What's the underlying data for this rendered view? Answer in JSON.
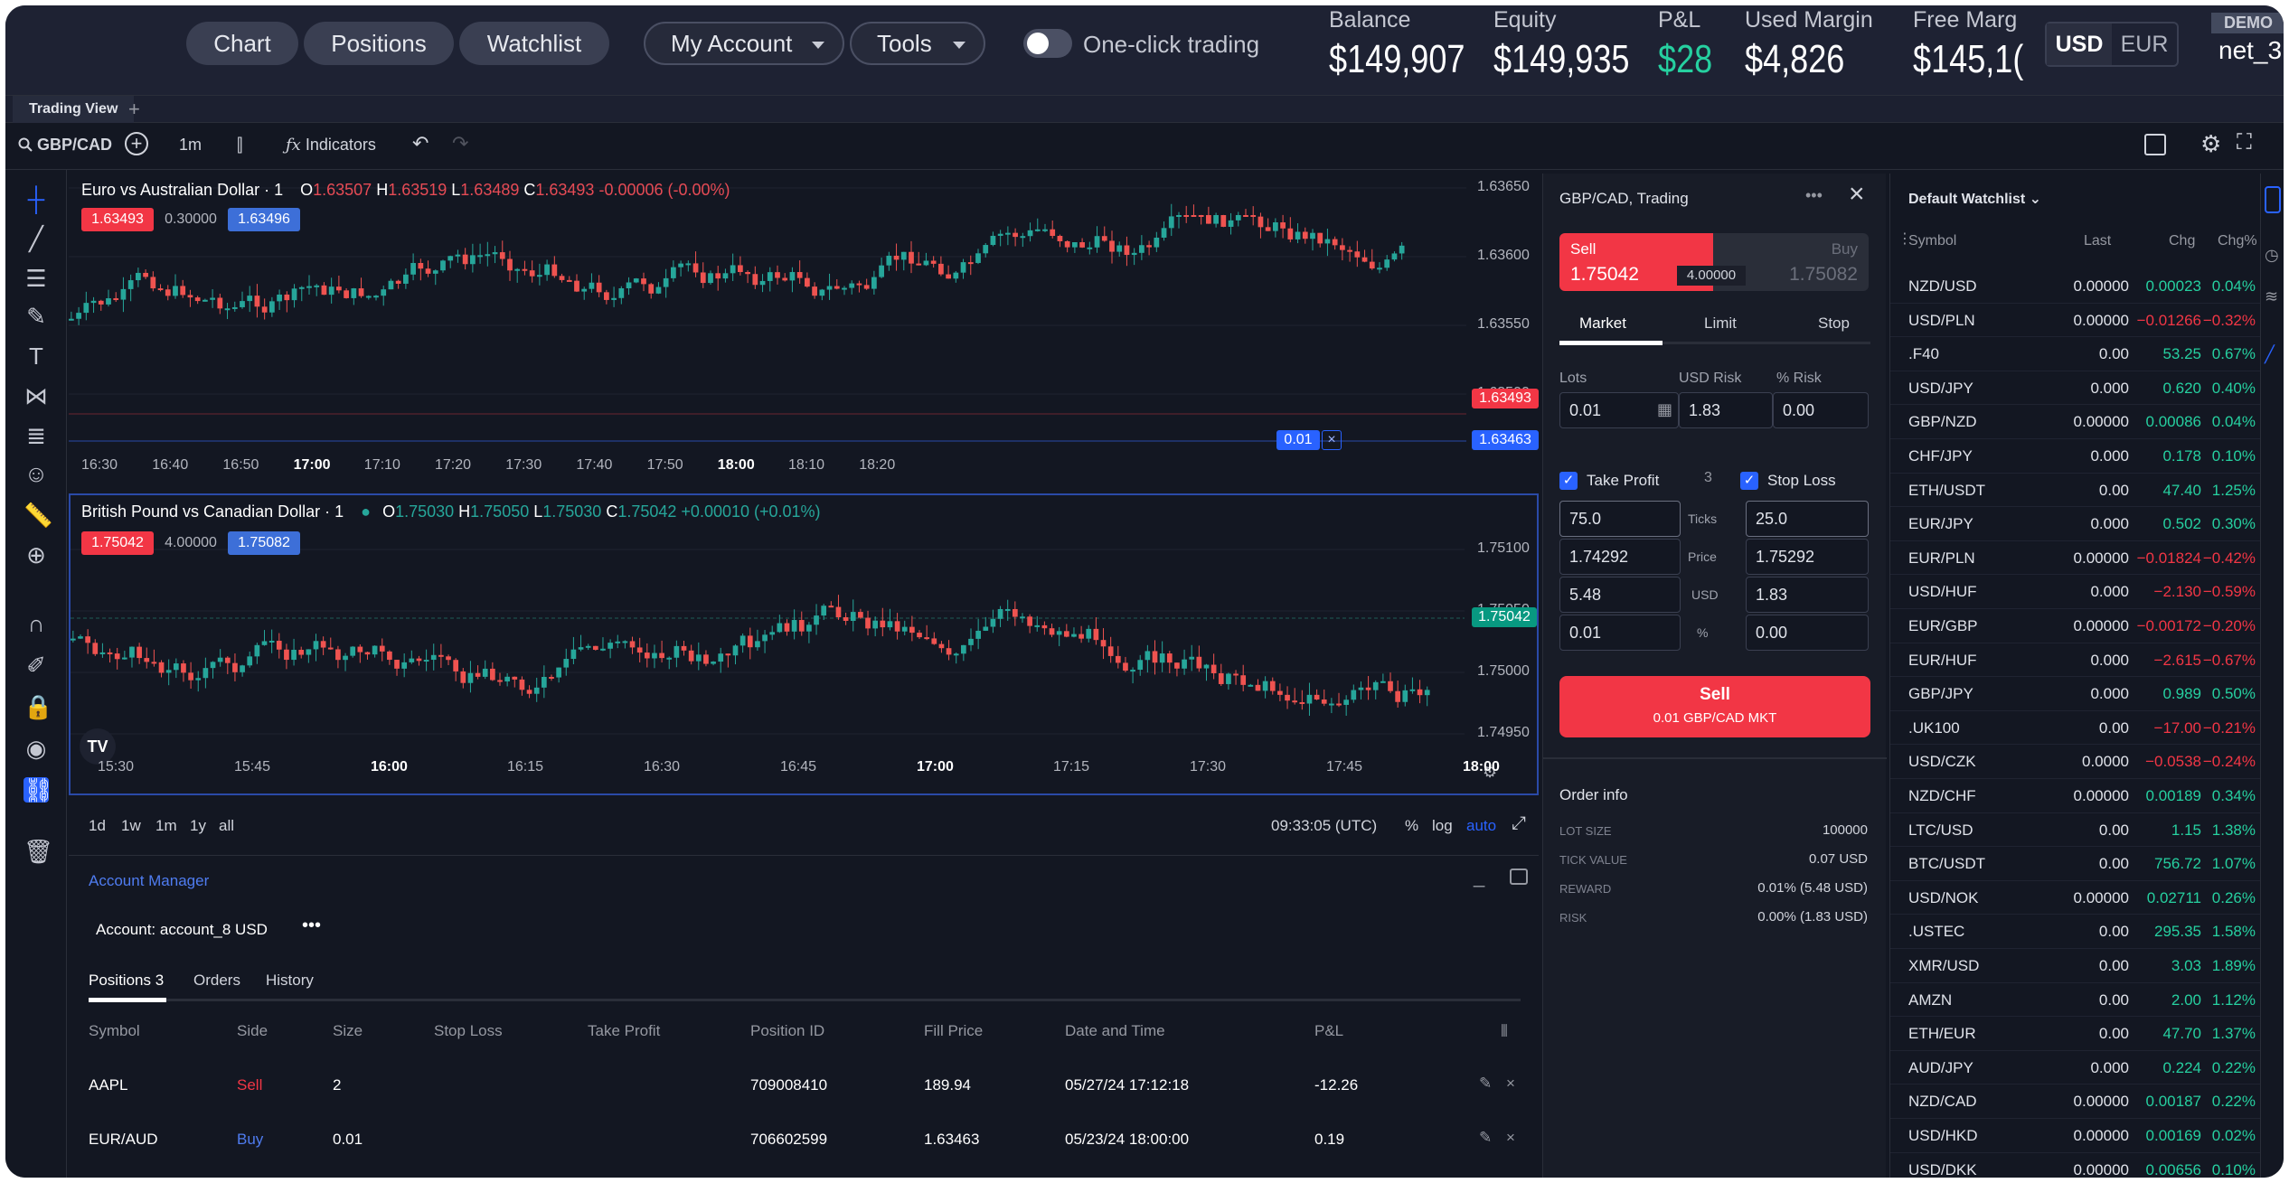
{
  "topbar": {
    "nav": [
      "Chart",
      "Positions",
      "Watchlist"
    ],
    "menus": [
      "My Account",
      "Tools"
    ],
    "one_click": "One-click trading",
    "metrics": [
      {
        "label": "Balance",
        "value": "$149,907"
      },
      {
        "label": "Equity",
        "value": "$149,935"
      },
      {
        "label": "P&L",
        "value": "$28"
      },
      {
        "label": "Used Margin",
        "value": "$4,826"
      },
      {
        "label": "Free Marg",
        "value": "$145,1("
      }
    ],
    "currencies": [
      "USD",
      "EUR"
    ],
    "demo": "DEMO",
    "account": "net_3"
  },
  "tabbar": {
    "tab": "Trading View",
    "plus": "+"
  },
  "toolbar": {
    "symbol": "GBP/CAD",
    "interval": "1m",
    "indicators": "Indicators"
  },
  "chart1": {
    "title": "Euro vs Australian Dollar · 1",
    "ohlc": {
      "o": "1.63507",
      "h": "1.63519",
      "l": "1.63489",
      "c": "1.63493",
      "chg": "-0.00006 (-0.00%)"
    },
    "sell": "1.63493",
    "spread": "0.30000",
    "buy": "1.63496",
    "prices": [
      "1.63650",
      "1.63600",
      "1.63550",
      "1.63500"
    ],
    "tag_red": "1.63493",
    "tag_blue": "1.63463",
    "qty": "0.01",
    "times": [
      {
        "t": "16:30",
        "b": false
      },
      {
        "t": "16:40",
        "b": false
      },
      {
        "t": "16:50",
        "b": false
      },
      {
        "t": "17:00",
        "b": true
      },
      {
        "t": "17:10",
        "b": false
      },
      {
        "t": "17:20",
        "b": false
      },
      {
        "t": "17:30",
        "b": false
      },
      {
        "t": "17:40",
        "b": false
      },
      {
        "t": "17:50",
        "b": false
      },
      {
        "t": "18:00",
        "b": true
      },
      {
        "t": "18:10",
        "b": false
      },
      {
        "t": "18:20",
        "b": false
      }
    ]
  },
  "chart2": {
    "title": "British Pound vs Canadian Dollar · 1",
    "ohlc": {
      "o": "1.75030",
      "h": "1.75050",
      "l": "1.75030",
      "c": "1.75042",
      "chg": "+0.00010 (+0.01%)"
    },
    "sell": "1.75042",
    "spread": "4.00000",
    "buy": "1.75082",
    "prices": [
      "1.75100",
      "1.75050",
      "1.75000",
      "1.74950"
    ],
    "tag_green": "1.75042",
    "times": [
      {
        "t": "15:30",
        "b": false
      },
      {
        "t": "15:45",
        "b": false
      },
      {
        "t": "16:00",
        "b": true
      },
      {
        "t": "16:15",
        "b": false
      },
      {
        "t": "16:30",
        "b": false
      },
      {
        "t": "16:45",
        "b": false
      },
      {
        "t": "17:00",
        "b": true
      },
      {
        "t": "17:15",
        "b": false
      },
      {
        "t": "17:30",
        "b": false
      },
      {
        "t": "17:45",
        "b": false
      },
      {
        "t": "18:00",
        "b": true
      },
      {
        "t": "18:15",
        "b": false
      }
    ]
  },
  "chart_footer": {
    "ranges": [
      "1d",
      "1w",
      "1m",
      "1y",
      "all"
    ],
    "clock": "09:33:05 (UTC)",
    "pct": "%",
    "log": "log",
    "auto": "auto"
  },
  "order": {
    "title": "GBP/CAD, Trading",
    "sell_label": "Sell",
    "sell_price": "1.75042",
    "buy_label": "Buy",
    "buy_price": "1.75082",
    "spread": "4.00000",
    "tabs": [
      "Market",
      "Limit",
      "Stop"
    ],
    "lots_label": "Lots",
    "usd_risk_label": "USD Risk",
    "pct_risk_label": "% Risk",
    "lots": "0.01",
    "usd_risk": "1.83",
    "pct_risk": "0.00",
    "take_profit": "Take Profit",
    "tp_count": "3",
    "stop_loss": "Stop Loss",
    "row_labels": [
      "Ticks",
      "Price",
      "USD",
      "%"
    ],
    "tp_values": [
      "75.0",
      "1.74292",
      "5.48",
      "0.01"
    ],
    "sl_values": [
      "25.0",
      "1.75292",
      "1.83",
      "0.00"
    ],
    "button_title": "Sell",
    "button_sub": "0.01 GBP/CAD MKT",
    "info_title": "Order info",
    "info": [
      {
        "k": "LOT SIZE",
        "v": "100000"
      },
      {
        "k": "TICK VALUE",
        "v": "0.07 USD"
      },
      {
        "k": "REWARD",
        "v": "0.01% (5.48 USD)"
      },
      {
        "k": "RISK",
        "v": "0.00% (1.83 USD)"
      }
    ]
  },
  "watchlist": {
    "title": "Default Watchlist",
    "headers": [
      "Symbol",
      "Last",
      "Chg",
      "Chg%"
    ],
    "rows": [
      {
        "s": "NZD/USD",
        "l": "0.00000",
        "c": "0.00023",
        "p": "0.04%",
        "up": true
      },
      {
        "s": "USD/PLN",
        "l": "0.00000",
        "c": "−0.01266",
        "p": "−0.32%",
        "up": false
      },
      {
        "s": ".F40",
        "l": "0.00",
        "c": "53.25",
        "p": "0.67%",
        "up": true
      },
      {
        "s": "USD/JPY",
        "l": "0.000",
        "c": "0.620",
        "p": "0.40%",
        "up": true
      },
      {
        "s": "GBP/NZD",
        "l": "0.00000",
        "c": "0.00086",
        "p": "0.04%",
        "up": true
      },
      {
        "s": "CHF/JPY",
        "l": "0.000",
        "c": "0.178",
        "p": "0.10%",
        "up": true
      },
      {
        "s": "ETH/USDT",
        "l": "0.00",
        "c": "47.40",
        "p": "1.25%",
        "up": true
      },
      {
        "s": "EUR/JPY",
        "l": "0.000",
        "c": "0.502",
        "p": "0.30%",
        "up": true
      },
      {
        "s": "EUR/PLN",
        "l": "0.00000",
        "c": "−0.01824",
        "p": "−0.42%",
        "up": false
      },
      {
        "s": "USD/HUF",
        "l": "0.000",
        "c": "−2.130",
        "p": "−0.59%",
        "up": false
      },
      {
        "s": "EUR/GBP",
        "l": "0.00000",
        "c": "−0.00172",
        "p": "−0.20%",
        "up": false
      },
      {
        "s": "EUR/HUF",
        "l": "0.000",
        "c": "−2.615",
        "p": "−0.67%",
        "up": false
      },
      {
        "s": "GBP/JPY",
        "l": "0.000",
        "c": "0.989",
        "p": "0.50%",
        "up": true
      },
      {
        "s": ".UK100",
        "l": "0.00",
        "c": "−17.00",
        "p": "−0.21%",
        "up": false
      },
      {
        "s": "USD/CZK",
        "l": "0.0000",
        "c": "−0.0538",
        "p": "−0.24%",
        "up": false
      },
      {
        "s": "NZD/CHF",
        "l": "0.00000",
        "c": "0.00189",
        "p": "0.34%",
        "up": true
      },
      {
        "s": "LTC/USD",
        "l": "0.00",
        "c": "1.15",
        "p": "1.38%",
        "up": true
      },
      {
        "s": "BTC/USDT",
        "l": "0.00",
        "c": "756.72",
        "p": "1.07%",
        "up": true
      },
      {
        "s": "USD/NOK",
        "l": "0.00000",
        "c": "0.02711",
        "p": "0.26%",
        "up": true
      },
      {
        "s": ".USTEC",
        "l": "0.00",
        "c": "295.35",
        "p": "1.58%",
        "up": true
      },
      {
        "s": "XMR/USD",
        "l": "0.00",
        "c": "3.03",
        "p": "1.89%",
        "up": true
      },
      {
        "s": "AMZN",
        "l": "0.00",
        "c": "2.00",
        "p": "1.12%",
        "up": true
      },
      {
        "s": "ETH/EUR",
        "l": "0.00",
        "c": "47.70",
        "p": "1.37%",
        "up": true
      },
      {
        "s": "AUD/JPY",
        "l": "0.000",
        "c": "0.224",
        "p": "0.22%",
        "up": true
      },
      {
        "s": "NZD/CAD",
        "l": "0.00000",
        "c": "0.00187",
        "p": "0.22%",
        "up": true
      },
      {
        "s": "USD/HKD",
        "l": "0.00000",
        "c": "0.00169",
        "p": "0.02%",
        "up": true
      },
      {
        "s": "USD/DKK",
        "l": "0.00000",
        "c": "0.00656",
        "p": "0.10%",
        "up": true
      }
    ]
  },
  "account_manager": {
    "title": "Account Manager",
    "account": "Account: account_8 USD",
    "tabs": [
      "Positions 3",
      "Orders",
      "History"
    ],
    "headers": [
      "Symbol",
      "Side",
      "Size",
      "Stop Loss",
      "Take Profit",
      "Position ID",
      "Fill Price",
      "Date and Time",
      "P&L"
    ],
    "rows": [
      {
        "symbol": "AAPL",
        "side": "Sell",
        "size": "2",
        "sl": "",
        "tp": "",
        "id": "709008410",
        "fill": "189.94",
        "date": "05/27/24 17:12:18",
        "pnl": "-12.26"
      },
      {
        "symbol": "EUR/AUD",
        "side": "Buy",
        "size": "0.01",
        "sl": "",
        "tp": "",
        "id": "706602599",
        "fill": "1.63463",
        "date": "05/23/24 18:00:00",
        "pnl": "0.19"
      }
    ]
  },
  "colors": {
    "bull": "#26a69a",
    "bear": "#ef5350",
    "accent": "#2962ff",
    "sell": "#f23645"
  }
}
